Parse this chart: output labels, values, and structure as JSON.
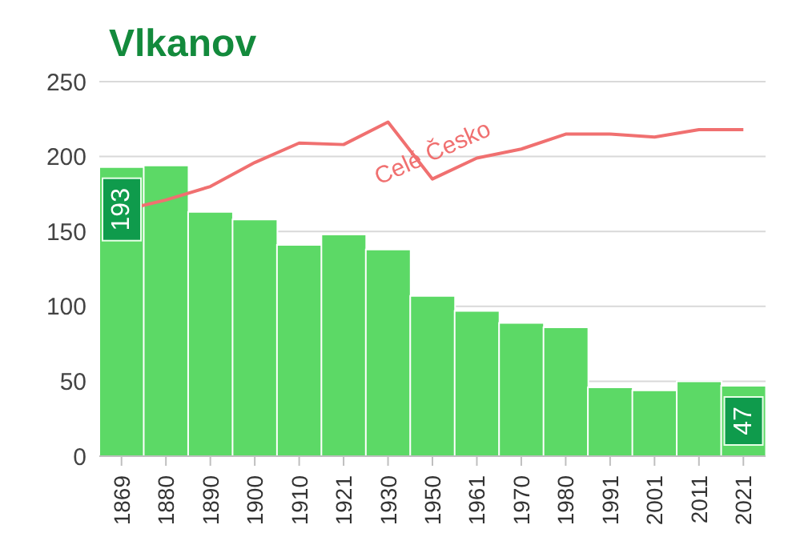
{
  "chart_data": {
    "type": "bar",
    "title": "Vlkanov",
    "categories": [
      "1869",
      "1880",
      "1890",
      "1900",
      "1910",
      "1921",
      "1930",
      "1950",
      "1961",
      "1970",
      "1980",
      "1991",
      "2001",
      "2011",
      "2021"
    ],
    "series": [
      {
        "color": "#5cd966",
        "values": [
          193,
          194,
          163,
          158,
          141,
          148,
          138,
          107,
          97,
          89,
          86,
          46,
          44,
          50,
          47
        ],
        "value_labels": [
          "193",
          null,
          null,
          null,
          null,
          null,
          null,
          null,
          null,
          null,
          null,
          null,
          null,
          null,
          "47"
        ]
      },
      {
        "type": "line",
        "name": "Celé Česko",
        "color": "#f07070",
        "values": [
          164,
          171,
          180,
          196,
          209,
          208,
          223,
          185,
          199,
          205,
          215,
          215,
          213,
          218,
          218
        ]
      }
    ],
    "ylim": [
      0,
      250
    ],
    "yticks": [
      0,
      50,
      100,
      150,
      200,
      250
    ],
    "grid": "y",
    "marker": "none"
  }
}
